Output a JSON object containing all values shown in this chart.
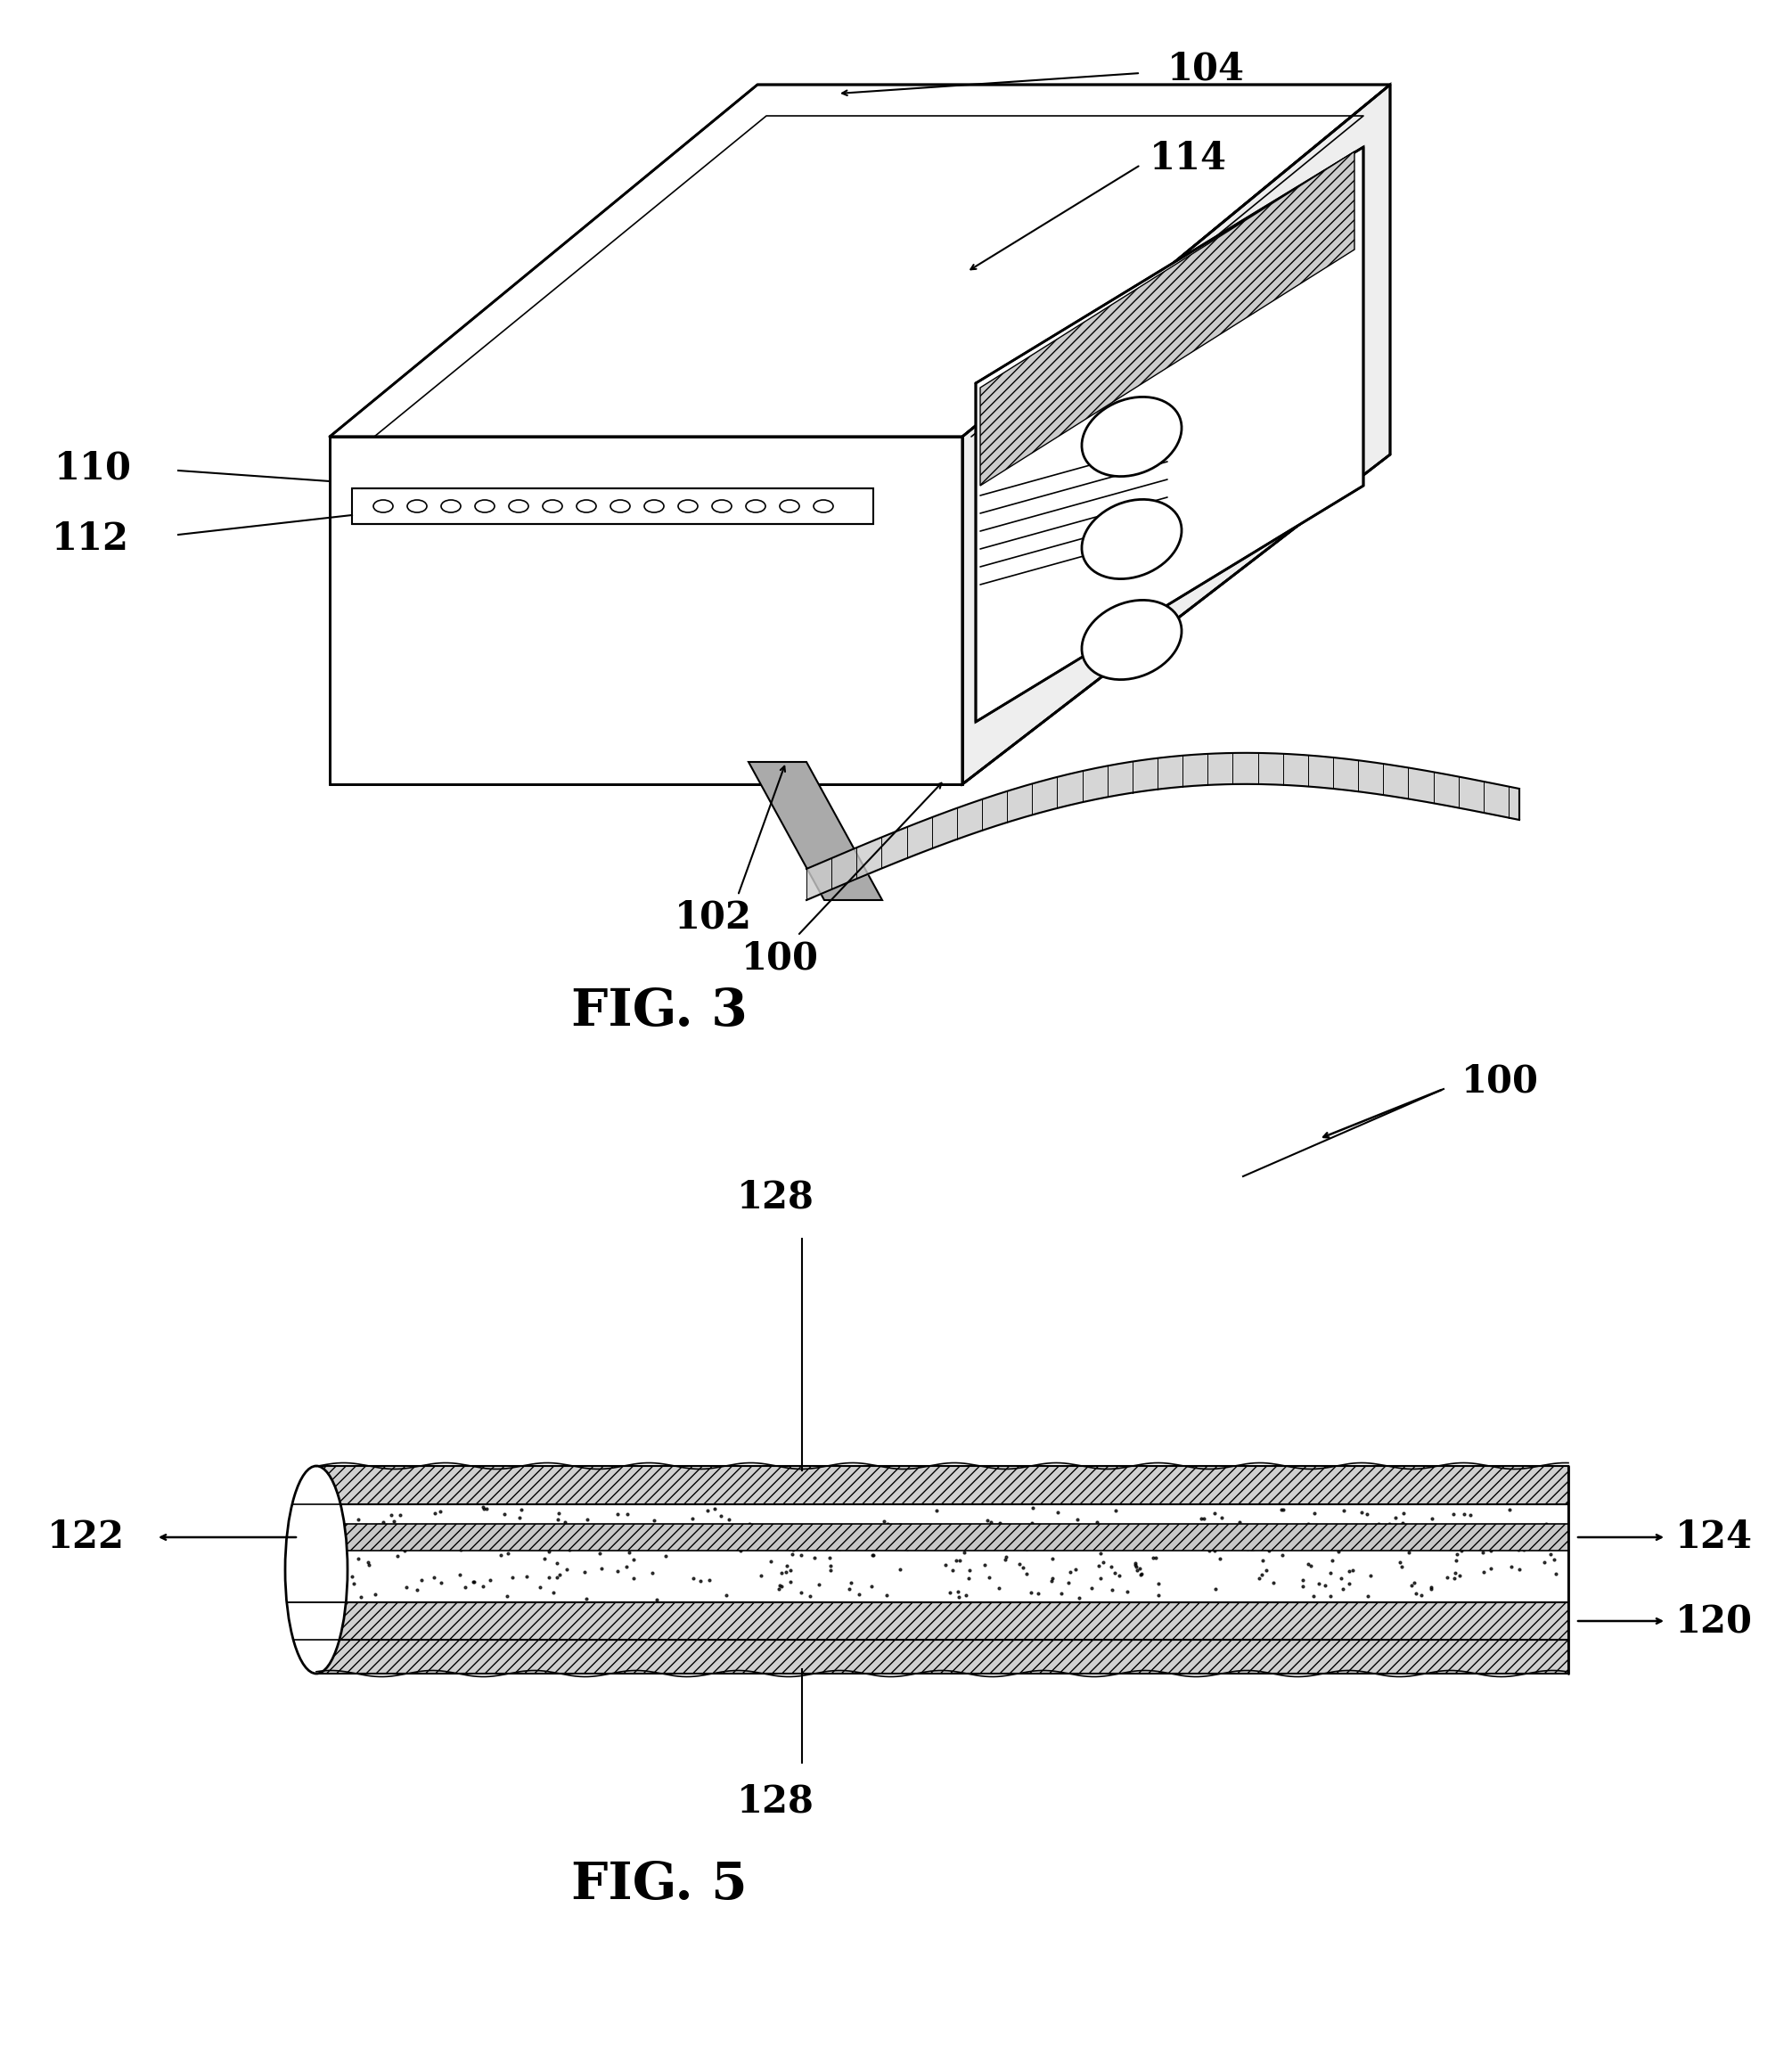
{
  "fig3_label": "FIG. 3",
  "fig5_label": "FIG. 5",
  "bg_color": "#ffffff",
  "line_color": "#000000"
}
